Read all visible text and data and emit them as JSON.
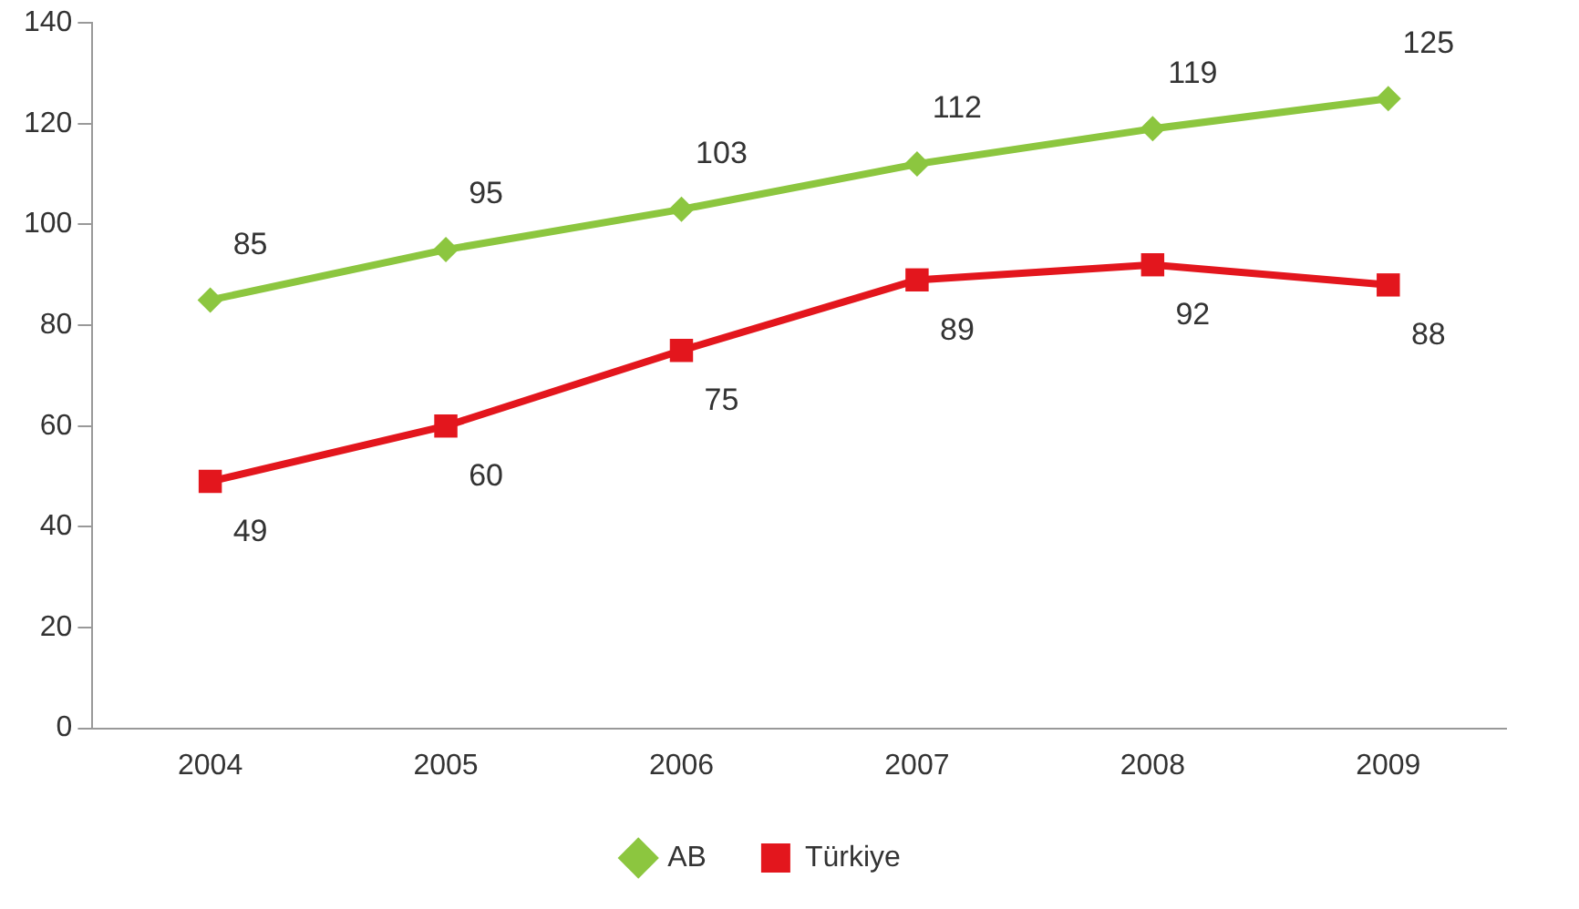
{
  "chart_data": {
    "type": "line",
    "categories": [
      "2004",
      "2005",
      "2006",
      "2007",
      "2008",
      "2009"
    ],
    "series": [
      {
        "name": "AB",
        "color": "#8cc63f",
        "values": [
          85,
          95,
          103,
          112,
          119,
          125
        ],
        "marker": "diamond"
      },
      {
        "name": "Türkiye",
        "color": "#e3161d",
        "values": [
          49,
          60,
          75,
          89,
          92,
          88
        ],
        "marker": "square"
      }
    ],
    "ylim": [
      0,
      140
    ],
    "yticks": [
      0,
      20,
      40,
      60,
      80,
      100,
      120,
      140
    ],
    "grid": false,
    "legend": "bottom",
    "data_labels": true,
    "line_style": "solid"
  }
}
